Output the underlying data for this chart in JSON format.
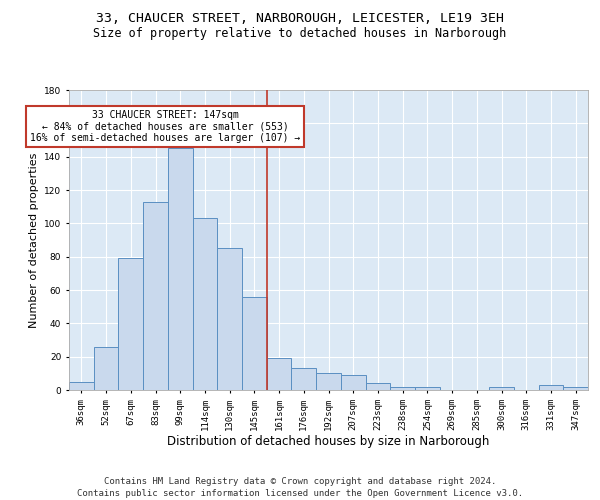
{
  "title_line1": "33, CHAUCER STREET, NARBOROUGH, LEICESTER, LE19 3EH",
  "title_line2": "Size of property relative to detached houses in Narborough",
  "xlabel": "Distribution of detached houses by size in Narborough",
  "ylabel": "Number of detached properties",
  "footer_line1": "Contains HM Land Registry data © Crown copyright and database right 2024.",
  "footer_line2": "Contains public sector information licensed under the Open Government Licence v3.0.",
  "categories": [
    "36sqm",
    "52sqm",
    "67sqm",
    "83sqm",
    "99sqm",
    "114sqm",
    "130sqm",
    "145sqm",
    "161sqm",
    "176sqm",
    "192sqm",
    "207sqm",
    "223sqm",
    "238sqm",
    "254sqm",
    "269sqm",
    "285sqm",
    "300sqm",
    "316sqm",
    "331sqm",
    "347sqm"
  ],
  "values": [
    5,
    26,
    79,
    113,
    145,
    103,
    85,
    56,
    19,
    13,
    10,
    9,
    4,
    2,
    2,
    0,
    0,
    2,
    0,
    3,
    2
  ],
  "bar_color": "#c9d9ed",
  "bar_edge_color": "#5a8fc2",
  "vline_x": 7.5,
  "vline_color": "#c0392b",
  "annotation_text_line1": "33 CHAUCER STREET: 147sqm",
  "annotation_text_line2": "← 84% of detached houses are smaller (553)",
  "annotation_text_line3": "16% of semi-detached houses are larger (107) →",
  "ylim": [
    0,
    180
  ],
  "yticks": [
    0,
    20,
    40,
    60,
    80,
    100,
    120,
    140,
    160,
    180
  ],
  "bg_color": "#dce9f5",
  "grid_color": "#ffffff",
  "title_fontsize": 9.5,
  "subtitle_fontsize": 8.5,
  "ylabel_fontsize": 8,
  "xlabel_fontsize": 8.5,
  "tick_fontsize": 6.5,
  "annot_fontsize": 7,
  "footer_fontsize": 6.5
}
